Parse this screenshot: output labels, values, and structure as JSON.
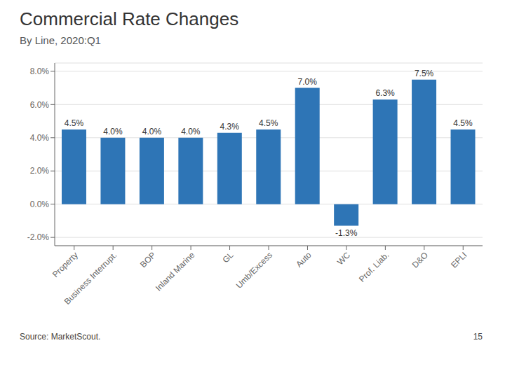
{
  "chart_data": {
    "type": "bar",
    "title": "Commercial Rate Changes",
    "subtitle": "By Line, 2020:Q1",
    "categories": [
      "Property",
      "Business Interrupt.",
      "BOP",
      "Inland Marine",
      "GL",
      "Umb/Excess",
      "Auto",
      "WC",
      "Prof. Liab.",
      "D&O",
      "EPLI"
    ],
    "values": [
      4.5,
      4.0,
      4.0,
      4.0,
      4.3,
      4.5,
      7.0,
      -1.3,
      6.3,
      7.5,
      4.5
    ],
    "value_labels": [
      "4.5%",
      "4.0%",
      "4.0%",
      "4.0%",
      "4.3%",
      "4.5%",
      "7.0%",
      "-1.3%",
      "6.3%",
      "7.5%",
      "4.5%"
    ],
    "data_labels": true,
    "color": "#2E75B6",
    "ylim": [
      -2.5,
      8.5
    ],
    "yticks": [
      {
        "value": -2.0,
        "label": "-2.0%"
      },
      {
        "value": 0.0,
        "label": "0.0%"
      },
      {
        "value": 2.0,
        "label": "2.0%"
      },
      {
        "value": 4.0,
        "label": "4.0%"
      },
      {
        "value": 6.0,
        "label": "6.0%"
      },
      {
        "value": 8.0,
        "label": "8.0%"
      }
    ],
    "grid": true,
    "annotations": [
      "Source: MarketScout.",
      "15"
    ]
  }
}
